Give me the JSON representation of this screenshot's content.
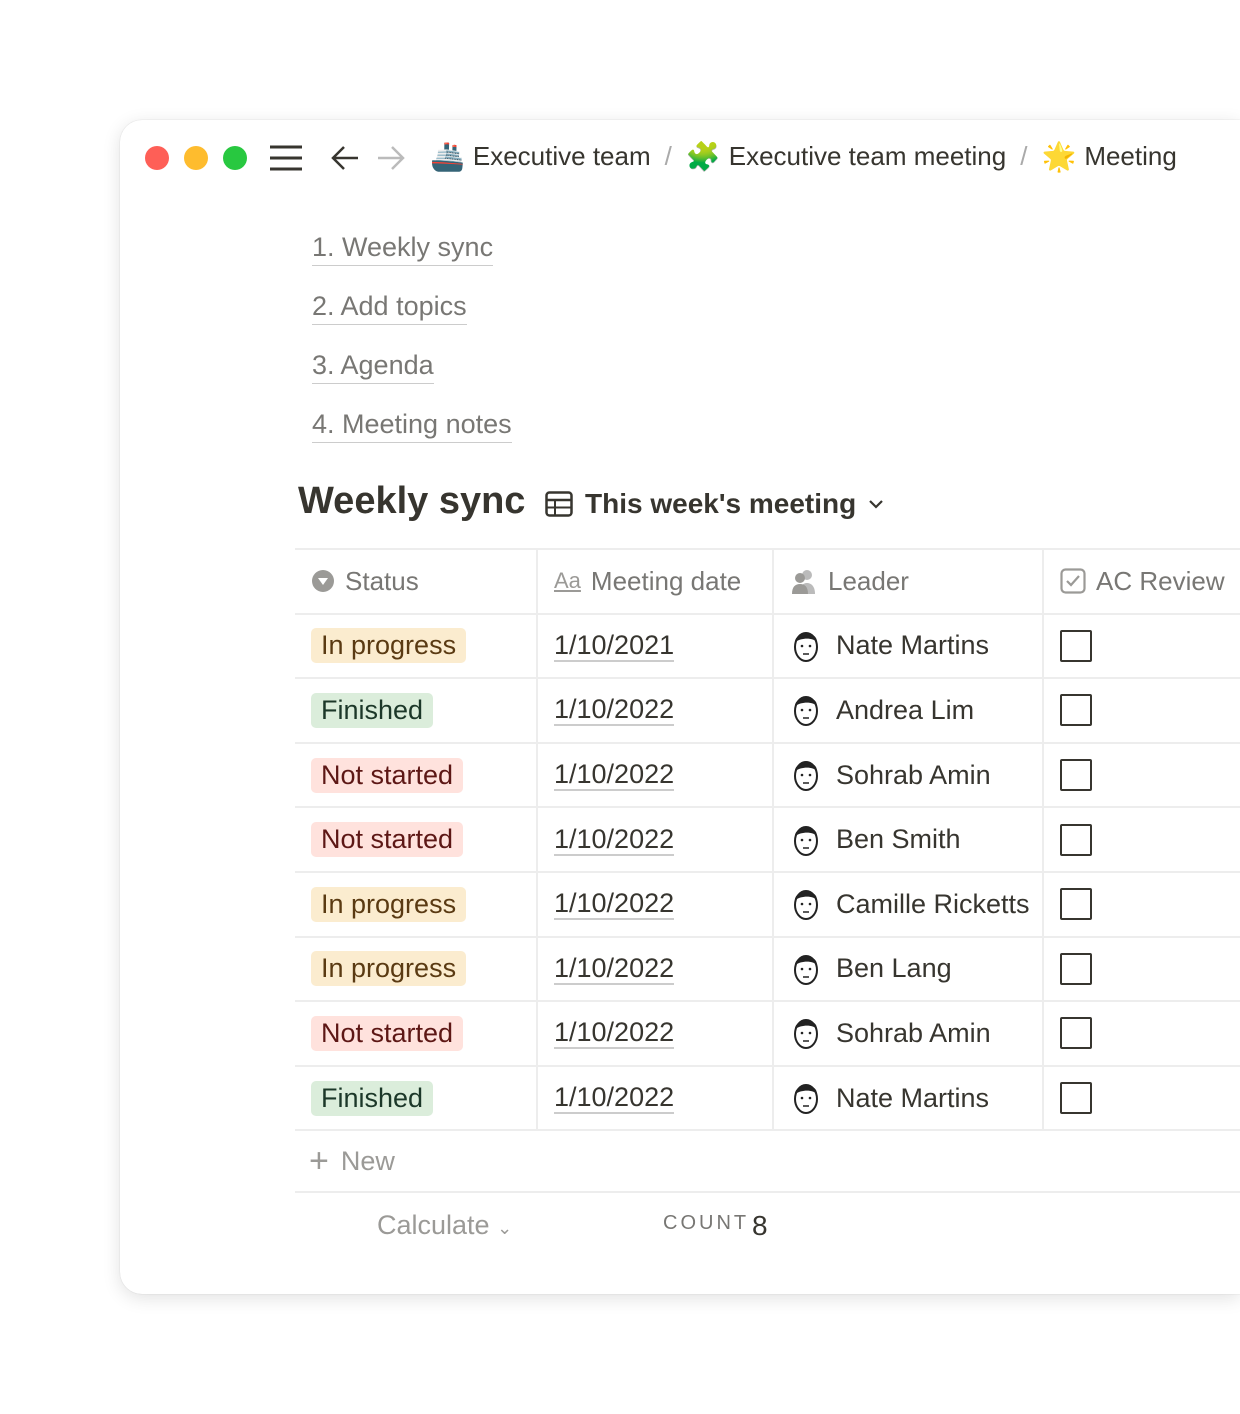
{
  "breadcrumbs": [
    {
      "emoji": "🚢",
      "label": "Executive team"
    },
    {
      "emoji": "🧩",
      "label": "Executive team meeting"
    },
    {
      "emoji": "🌟",
      "label": "Meeting"
    }
  ],
  "toc": [
    "1. Weekly sync",
    "2. Add topics",
    "3. Agenda",
    "4. Meeting notes"
  ],
  "section": {
    "title": "Weekly sync",
    "view": "This week's meeting"
  },
  "columns": [
    "Status",
    "Meeting date",
    "Leader",
    "AC Review"
  ],
  "status_colors": {
    "In progress": {
      "bg": "#fbeccf",
      "fg": "#5a3a12"
    },
    "Finished": {
      "bg": "#dbeddb",
      "fg": "#1c3829"
    },
    "Not started": {
      "bg": "#ffe2dd",
      "fg": "#5d1715"
    }
  },
  "rows": [
    {
      "status": "In progress",
      "date": "1/10/2021",
      "leader": "Nate Martins",
      "checked": false
    },
    {
      "status": "Finished",
      "date": "1/10/2022",
      "leader": "Andrea Lim",
      "checked": false
    },
    {
      "status": "Not started",
      "date": "1/10/2022",
      "leader": "Sohrab Amin",
      "checked": false
    },
    {
      "status": "Not started",
      "date": "1/10/2022",
      "leader": "Ben Smith",
      "checked": false
    },
    {
      "status": "In progress",
      "date": "1/10/2022",
      "leader": "Camille Ricketts",
      "checked": false
    },
    {
      "status": "In progress",
      "date": "1/10/2022",
      "leader": "Ben Lang",
      "checked": false
    },
    {
      "status": "Not started",
      "date": "1/10/2022",
      "leader": "Sohrab Amin",
      "checked": false
    },
    {
      "status": "Finished",
      "date": "1/10/2022",
      "leader": "Nate Martins",
      "checked": false
    }
  ],
  "new_label": "New",
  "footer": {
    "calculate": "Calculate",
    "count_label": "COUNT",
    "count_value": "8"
  }
}
